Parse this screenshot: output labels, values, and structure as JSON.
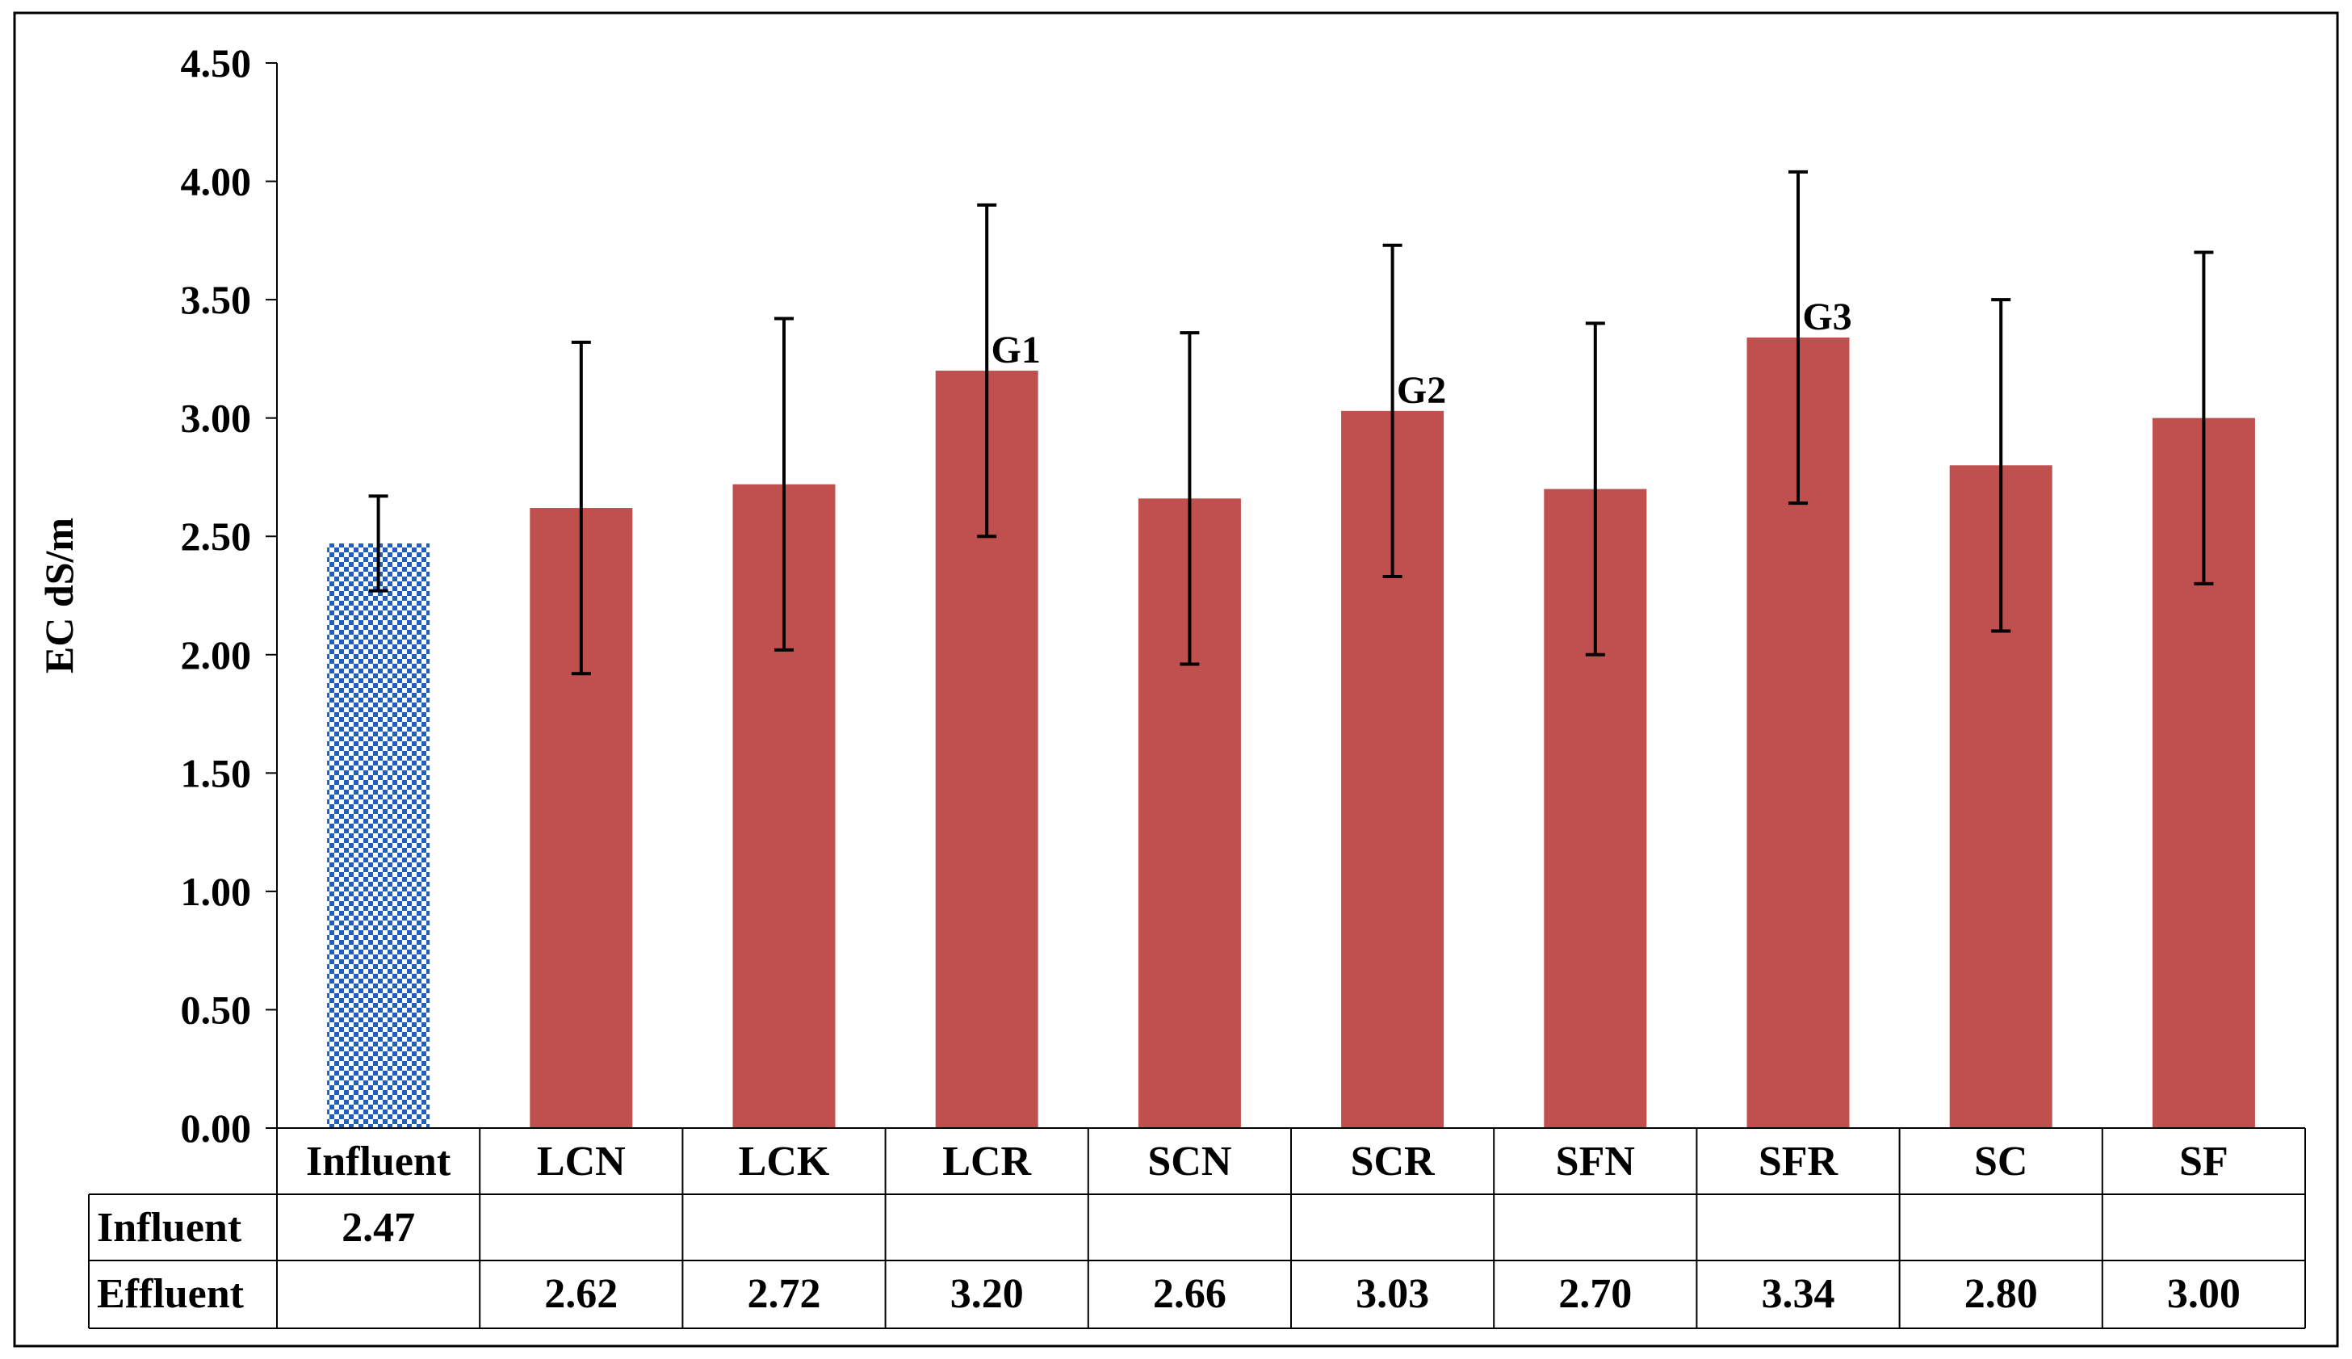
{
  "chart_data": {
    "type": "bar",
    "title": "",
    "xlabel": "",
    "ylabel": "EC  dS/m",
    "ylim": [
      0,
      4.5
    ],
    "yticks": [
      "0.00",
      "0.50",
      "1.00",
      "1.50",
      "2.00",
      "2.50",
      "3.00",
      "3.50",
      "4.00",
      "4.50"
    ],
    "grid": false,
    "categories": [
      "Influent",
      "LCN",
      "LCK",
      "LCR",
      "SCN",
      "SCR",
      "SFN",
      "SFR",
      "SC",
      "SF"
    ],
    "series": [
      {
        "name": "Influent",
        "color": "#1f5fbf",
        "pattern": "checkered",
        "values": [
          2.47,
          null,
          null,
          null,
          null,
          null,
          null,
          null,
          null,
          null
        ],
        "error_low": [
          2.27,
          null,
          null,
          null,
          null,
          null,
          null,
          null,
          null,
          null
        ],
        "error_high": [
          2.67,
          null,
          null,
          null,
          null,
          null,
          null,
          null,
          null,
          null
        ],
        "value_labels": [
          "2.47",
          "",
          "",
          "",
          "",
          "",
          "",
          "",
          "",
          ""
        ]
      },
      {
        "name": "Effluent",
        "color": "#c0504d",
        "values": [
          null,
          2.62,
          2.72,
          3.2,
          2.66,
          3.03,
          2.7,
          3.34,
          2.8,
          3.0
        ],
        "error_low": [
          null,
          1.92,
          2.02,
          2.5,
          1.96,
          2.33,
          2.0,
          2.64,
          2.1,
          2.3
        ],
        "error_high": [
          null,
          3.32,
          3.42,
          3.9,
          3.36,
          3.73,
          3.4,
          4.04,
          3.5,
          3.7
        ],
        "value_labels": [
          "",
          "2.62",
          "2.72",
          "3.20",
          "2.66",
          "3.03",
          "2.70",
          "3.34",
          "2.80",
          "3.00"
        ]
      }
    ],
    "annotations": [
      {
        "category": "LCR",
        "text": "G1"
      },
      {
        "category": "SCR",
        "text": "G2"
      },
      {
        "category": "SFR",
        "text": "G3"
      }
    ]
  }
}
